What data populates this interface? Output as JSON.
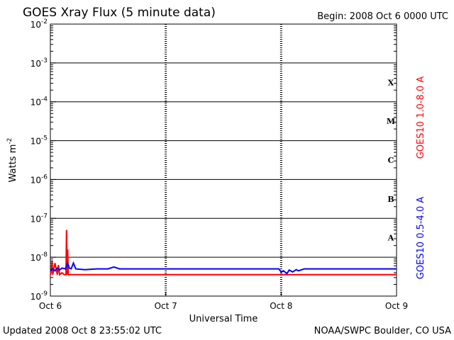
{
  "header": {
    "title": "GOES Xray Flux (5 minute data)",
    "begin": "Begin:  2008 Oct 6 0000 UTC"
  },
  "footer": {
    "updated": "Updated 2008 Oct  8 23:55:02 UTC",
    "credit": "NOAA/SWPC Boulder, CO USA"
  },
  "chart_data": {
    "type": "line",
    "title": "GOES Xray Flux (5 minute data)",
    "xlabel": "Universal Time",
    "ylabel": "Watts m",
    "ylabel_sup": "-2",
    "xlim": [
      0,
      3
    ],
    "x_ticks": [
      {
        "value": 0,
        "label": "Oct 6"
      },
      {
        "value": 1,
        "label": "Oct 7"
      },
      {
        "value": 2,
        "label": "Oct 8"
      },
      {
        "value": 3,
        "label": "Oct 9"
      }
    ],
    "y_scale": "log",
    "ylim_exponents": [
      -9,
      -2
    ],
    "y_ticks": [
      {
        "exp": -2,
        "base": "10",
        "sup": "-2"
      },
      {
        "exp": -3,
        "base": "10",
        "sup": "-3"
      },
      {
        "exp": -4,
        "base": "10",
        "sup": "-4"
      },
      {
        "exp": -5,
        "base": "10",
        "sup": "-5"
      },
      {
        "exp": -6,
        "base": "10",
        "sup": "-6"
      },
      {
        "exp": -7,
        "base": "10",
        "sup": "-7"
      },
      {
        "exp": -8,
        "base": "10",
        "sup": "-8"
      },
      {
        "exp": -9,
        "base": "10",
        "sup": "-9"
      }
    ],
    "flare_classes": [
      {
        "label": "X",
        "exp_center": -3.5
      },
      {
        "label": "M",
        "exp_center": -4.5
      },
      {
        "label": "C",
        "exp_center": -5.5
      },
      {
        "label": "B",
        "exp_center": -6.5
      },
      {
        "label": "A",
        "exp_center": -7.5
      }
    ],
    "grid": "horizontal lines at each decade; dashed vertical lines at day boundaries",
    "series": [
      {
        "name": "GOES10 1.0-8.0 A",
        "color": "#ff0000",
        "points": [
          [
            0.0,
            -8.45
          ],
          [
            0.01,
            -8.3
          ],
          [
            0.015,
            -8.1
          ],
          [
            0.02,
            -8.45
          ],
          [
            0.03,
            -8.3
          ],
          [
            0.04,
            -8.15
          ],
          [
            0.06,
            -8.45
          ],
          [
            0.07,
            -8.2
          ],
          [
            0.08,
            -8.45
          ],
          [
            0.1,
            -8.4
          ],
          [
            0.12,
            -8.45
          ],
          [
            0.135,
            -8.45
          ],
          [
            0.14,
            -7.3
          ],
          [
            0.145,
            -8.45
          ],
          [
            0.15,
            -7.8
          ],
          [
            0.155,
            -8.45
          ],
          [
            0.2,
            -8.45
          ],
          [
            3.0,
            -8.45
          ]
        ]
      },
      {
        "name": "GOES10 0.5-4.0 A",
        "color": "#0000ff",
        "points": [
          [
            0.0,
            -8.35
          ],
          [
            0.02,
            -8.3
          ],
          [
            0.04,
            -8.35
          ],
          [
            0.06,
            -8.28
          ],
          [
            0.08,
            -8.33
          ],
          [
            0.1,
            -8.28
          ],
          [
            0.13,
            -8.3
          ],
          [
            0.15,
            -8.15
          ],
          [
            0.165,
            -8.28
          ],
          [
            0.18,
            -8.3
          ],
          [
            0.2,
            -8.15
          ],
          [
            0.22,
            -8.3
          ],
          [
            0.3,
            -8.32
          ],
          [
            0.4,
            -8.3
          ],
          [
            0.5,
            -8.3
          ],
          [
            0.55,
            -8.25
          ],
          [
            0.6,
            -8.3
          ],
          [
            0.8,
            -8.3
          ],
          [
            1.0,
            -8.3
          ],
          [
            1.2,
            -8.3
          ],
          [
            1.5,
            -8.3
          ],
          [
            1.8,
            -8.3
          ],
          [
            1.98,
            -8.3
          ],
          [
            2.0,
            -8.38
          ],
          [
            2.02,
            -8.35
          ],
          [
            2.05,
            -8.42
          ],
          [
            2.07,
            -8.33
          ],
          [
            2.1,
            -8.38
          ],
          [
            2.13,
            -8.32
          ],
          [
            2.15,
            -8.35
          ],
          [
            2.2,
            -8.3
          ],
          [
            2.4,
            -8.3
          ],
          [
            2.7,
            -8.3
          ],
          [
            3.0,
            -8.3
          ]
        ]
      }
    ]
  }
}
